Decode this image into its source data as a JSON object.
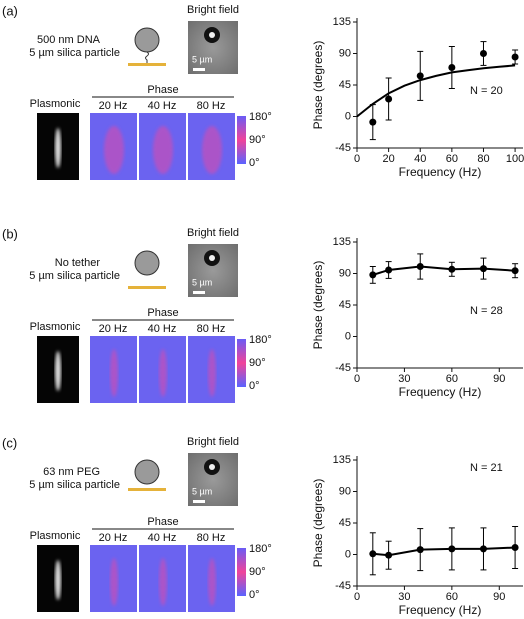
{
  "panels": [
    {
      "label": "(a)",
      "tether": "500 nm DNA",
      "particle": "5 µm silica particle",
      "bright_field": "Bright field",
      "scale": "5 µm",
      "plasmonic": "Plasmonic",
      "phase": "Phase",
      "frequencies": [
        "20 Hz",
        "40 Hz",
        "80 Hz"
      ],
      "colorbar": [
        "180°",
        "90°",
        "0°"
      ]
    },
    {
      "label": "(b)",
      "tether": "No tether",
      "particle": "5 µm silica particle",
      "bright_field": "Bright field",
      "scale": "5 µm",
      "plasmonic": "Plasmonic",
      "phase": "Phase",
      "frequencies": [
        "20 Hz",
        "40 Hz",
        "80 Hz"
      ],
      "colorbar": [
        "180°",
        "90°",
        "0°"
      ]
    },
    {
      "label": "(c)",
      "tether": "63 nm PEG",
      "particle": "5 µm silica particle",
      "bright_field": "Bright field",
      "scale": "5 µm",
      "plasmonic": "Plasmonic",
      "phase": "Phase",
      "frequencies": [
        "20 Hz",
        "40 Hz",
        "80 Hz"
      ],
      "colorbar": [
        "180°",
        "90°",
        "0°"
      ]
    }
  ],
  "chart_data": [
    {
      "type": "line",
      "x_label": "Frequency (Hz)",
      "y_label": "Phase (degrees)",
      "annotation": "N = 20",
      "x": [
        10,
        20,
        40,
        60,
        80,
        100
      ],
      "values": [
        -8,
        25,
        58,
        70,
        90,
        85
      ],
      "errors": [
        25,
        30,
        35,
        30,
        17,
        10
      ],
      "color": "#000000",
      "fit": {
        "x": [
          0,
          10,
          20,
          30,
          40,
          50,
          60,
          70,
          80,
          90,
          100
        ],
        "values": [
          0,
          18,
          33,
          44,
          52,
          58,
          63,
          66,
          69,
          71,
          73
        ]
      },
      "xlim": [
        0,
        105
      ],
      "xticks": [
        0,
        20,
        40,
        60,
        80,
        100
      ],
      "ylim": [
        -45,
        135
      ],
      "yticks": [
        -45,
        0,
        45,
        90,
        135
      ]
    },
    {
      "type": "line",
      "x_label": "Frequency (Hz)",
      "y_label": "Phase (degrees)",
      "annotation": "N = 28",
      "x": [
        10,
        20,
        40,
        60,
        80,
        100
      ],
      "values": [
        88,
        95,
        100,
        96,
        97,
        94
      ],
      "errors": [
        12,
        12,
        18,
        10,
        15,
        10
      ],
      "color": "#000000",
      "xlim": [
        0,
        105
      ],
      "xticks": [
        0,
        30,
        60,
        90
      ],
      "ylim": [
        -45,
        135
      ],
      "yticks": [
        -45,
        0,
        45,
        90,
        135
      ]
    },
    {
      "type": "line",
      "x_label": "Frequency (Hz)",
      "y_label": "Phase (degrees)",
      "annotation": "N = 21",
      "x": [
        10,
        20,
        40,
        60,
        80,
        100
      ],
      "values": [
        1,
        -1,
        7,
        8,
        8,
        10
      ],
      "errors": [
        30,
        20,
        30,
        30,
        30,
        30
      ],
      "color": "#000000",
      "xlim": [
        0,
        105
      ],
      "xticks": [
        0,
        30,
        60,
        90
      ],
      "ylim": [
        -45,
        135
      ],
      "yticks": [
        -45,
        0,
        45,
        90,
        135
      ]
    }
  ]
}
